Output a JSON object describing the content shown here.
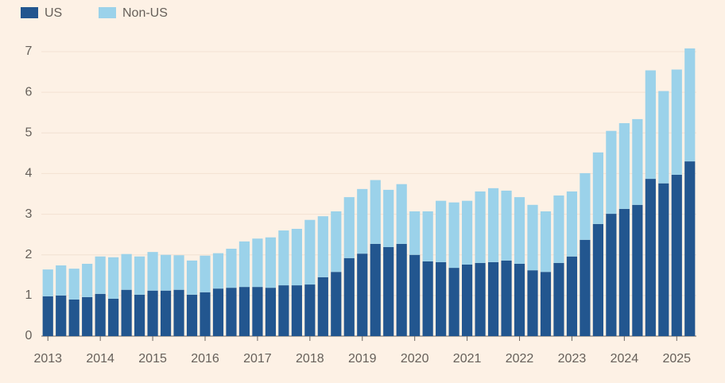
{
  "chart_data": {
    "type": "stacked_bar",
    "categories": [
      "2013",
      null,
      null,
      null,
      "2014",
      null,
      null,
      null,
      "2015",
      null,
      null,
      null,
      "2016",
      null,
      null,
      null,
      "2017",
      null,
      null,
      null,
      "2018",
      null,
      null,
      null,
      "2019",
      null,
      null,
      null,
      "2020",
      null,
      null,
      null,
      "2021",
      null,
      null,
      null,
      "2022",
      null,
      null,
      null,
      "2023",
      null,
      null,
      null,
      "2024",
      null,
      null,
      null,
      "2025",
      null
    ],
    "series": [
      {
        "name": "US",
        "color": "#22568f",
        "values": [
          0.98,
          1.0,
          0.9,
          0.96,
          1.04,
          0.92,
          1.14,
          1.02,
          1.12,
          1.12,
          1.14,
          1.02,
          1.08,
          1.17,
          1.19,
          1.21,
          1.21,
          1.19,
          1.25,
          1.25,
          1.27,
          1.45,
          1.58,
          1.92,
          2.03,
          2.27,
          2.19,
          2.27,
          2.0,
          1.84,
          1.82,
          1.68,
          1.76,
          1.8,
          1.82,
          1.86,
          1.78,
          1.62,
          1.58,
          1.8,
          1.96,
          2.37,
          2.76,
          3.01,
          3.13,
          3.23,
          3.87,
          3.76,
          3.97,
          4.3
        ]
      },
      {
        "name": "Non-US",
        "color": "#9bd2ea",
        "values": [
          0.66,
          0.74,
          0.76,
          0.82,
          0.92,
          1.02,
          0.88,
          0.94,
          0.95,
          0.88,
          0.85,
          0.84,
          0.9,
          0.87,
          0.96,
          1.12,
          1.19,
          1.24,
          1.35,
          1.39,
          1.59,
          1.5,
          1.49,
          1.5,
          1.59,
          1.57,
          1.41,
          1.47,
          1.07,
          1.23,
          1.51,
          1.61,
          1.57,
          1.76,
          1.82,
          1.72,
          1.64,
          1.61,
          1.49,
          1.66,
          1.6,
          1.64,
          1.76,
          2.04,
          2.11,
          2.11,
          2.67,
          2.27,
          2.59,
          2.78
        ]
      }
    ],
    "ylim": [
      0,
      7
    ],
    "yticks": [
      0,
      1,
      2,
      3,
      4,
      5,
      6,
      7
    ],
    "grid": true,
    "legend": "top-left"
  }
}
